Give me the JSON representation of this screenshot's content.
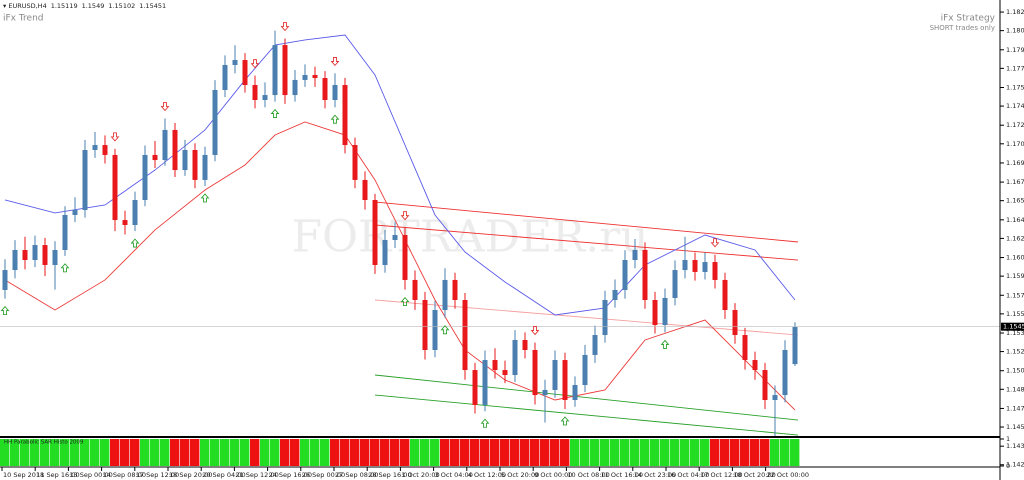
{
  "chart_data": {
    "type": "candlestick",
    "symbol": "EURUSD,H4",
    "header_values": [
      1.15119,
      1.1549,
      1.15102,
      1.15451
    ],
    "indicator_title": "iFx Trend",
    "strategy_title": "iFx Strategy",
    "strategy_note": "SHORT trades only",
    "watermark": "FORTRADER.ru",
    "up_color": "#4a7fb0",
    "down_color": "#e8191c",
    "open": [
      1.15777,
      1.15954,
      1.16132,
      1.16043,
      1.16176,
      1.15999,
      1.16132,
      1.16443,
      1.16487,
      1.1702,
      1.17064,
      1.16976,
      1.16398,
      1.16354,
      1.16576,
      1.16976,
      1.16931,
      1.17198,
      1.16842,
      1.1702,
      1.16754,
      1.16976,
      1.17553,
      1.17775,
      1.17819,
      1.17597,
      1.17464,
      1.17508,
      1.17952,
      1.17508,
      1.17642,
      1.17686,
      1.17659,
      1.17464,
      1.17597,
      1.17064,
      1.16754,
      1.16576,
      1.15999,
      1.16221,
      1.16265,
      1.15866,
      1.15688,
      1.15244,
      1.15599,
      1.15866,
      1.15688,
      1.15066,
      1.14756,
      1.15155,
      1.15066,
      1.15022,
      1.15333,
      1.15244,
      1.14844,
      1.14889,
      1.15155,
      1.148,
      1.14933,
      1.152,
      1.15377,
      1.15688,
      1.15777,
      1.16043,
      1.16132,
      1.15688,
      1.15466,
      1.15706,
      1.15954,
      1.16043,
      1.15937,
      1.16025,
      1.15866,
      1.15599,
      1.15377,
      1.15155,
      1.15066,
      1.148,
      1.14844,
      1.15119
    ],
    "high": [
      1.1605,
      1.1622,
      1.1625,
      1.1626,
      1.1624,
      1.1621,
      1.1652,
      1.166,
      1.1711,
      1.1718,
      1.1715,
      1.1703,
      1.1648,
      1.1665,
      1.1706,
      1.171,
      1.173,
      1.1726,
      1.1711,
      1.1708,
      1.1705,
      1.1764,
      1.1786,
      1.1795,
      1.1788,
      1.1768,
      1.1762,
      1.1808,
      1.1801,
      1.1773,
      1.1778,
      1.1776,
      1.1772,
      1.177,
      1.1766,
      1.1713,
      1.1683,
      1.1663,
      1.1631,
      1.1638,
      1.1633,
      1.1595,
      1.1576,
      1.1568,
      1.1597,
      1.1593,
      1.1575,
      1.1513,
      1.1524,
      1.1526,
      1.1515,
      1.1542,
      1.154,
      1.1531,
      1.1498,
      1.1524,
      1.1522,
      1.1501,
      1.1529,
      1.1546,
      1.1577,
      1.1587,
      1.1613,
      1.1623,
      1.162,
      1.1576,
      1.1579,
      1.1604,
      1.1625,
      1.1611,
      1.1611,
      1.1609,
      1.1593,
      1.1566,
      1.1544,
      1.1523,
      1.1513,
      1.1493,
      1.1533,
      1.1549
    ],
    "low": [
      1.157,
      1.1588,
      1.1596,
      1.1598,
      1.159,
      1.1578,
      1.1608,
      1.1638,
      1.1642,
      1.1695,
      1.169,
      1.163,
      1.1627,
      1.163,
      1.1652,
      1.1686,
      1.1688,
      1.1678,
      1.1679,
      1.1668,
      1.167,
      1.1692,
      1.1749,
      1.177,
      1.1753,
      1.1739,
      1.174,
      1.1745,
      1.1743,
      1.1745,
      1.1758,
      1.1758,
      1.1739,
      1.174,
      1.1699,
      1.1668,
      1.1649,
      1.1592,
      1.1593,
      1.1615,
      1.1578,
      1.156,
      1.1516,
      1.1518,
      1.1553,
      1.1561,
      1.1498,
      1.1468,
      1.147,
      1.1499,
      1.1495,
      1.1496,
      1.1517,
      1.1476,
      1.146,
      1.1482,
      1.1472,
      1.1474,
      1.1487,
      1.1513,
      1.1531,
      1.1562,
      1.157,
      1.1597,
      1.1561,
      1.1539,
      1.154,
      1.1564,
      1.1588,
      1.1586,
      1.1587,
      1.1579,
      1.1552,
      1.153,
      1.1507,
      1.1498,
      1.1472,
      1.1443,
      1.1478,
      1.15102
    ],
    "close": [
      1.15954,
      1.16132,
      1.16043,
      1.16176,
      1.15999,
      1.16132,
      1.16443,
      1.16487,
      1.1702,
      1.17064,
      1.16976,
      1.16398,
      1.16354,
      1.16576,
      1.16976,
      1.16931,
      1.17198,
      1.16842,
      1.1702,
      1.16754,
      1.16976,
      1.17553,
      1.17775,
      1.17819,
      1.17597,
      1.17464,
      1.17508,
      1.17952,
      1.17508,
      1.17642,
      1.17686,
      1.17659,
      1.17464,
      1.17597,
      1.17064,
      1.16754,
      1.16576,
      1.15999,
      1.16221,
      1.16265,
      1.15866,
      1.15688,
      1.15244,
      1.15599,
      1.15866,
      1.15688,
      1.15066,
      1.14756,
      1.15155,
      1.15066,
      1.15022,
      1.15333,
      1.15244,
      1.14844,
      1.14889,
      1.15155,
      1.148,
      1.14933,
      1.152,
      1.15377,
      1.15688,
      1.15777,
      1.16043,
      1.16132,
      1.15688,
      1.15466,
      1.15706,
      1.15954,
      1.16043,
      1.15937,
      1.16025,
      1.15866,
      1.15599,
      1.15377,
      1.15155,
      1.15066,
      1.148,
      1.14844,
      1.15244,
      1.15451
    ],
    "ylim": [
      1.14205,
      1.18352
    ],
    "yticks": [
      1.18245,
      {
        "value": 1.1808,
        "label": "1.18080"
      },
      {
        "value": 1.1791,
        "label": "1.17910"
      },
      1.17745,
      1.17575,
      {
        "value": 1.1741,
        "label": "1.17410"
      },
      {
        "value": 1.1724,
        "label": "1.17240"
      },
      1.17075,
      1.16905,
      1.16735,
      {
        "value": 1.1657,
        "label": "1.16570"
      },
      {
        "value": 1.164,
        "label": "1.16400"
      },
      1.16235,
      1.16065,
      {
        "value": 1.159,
        "label": "1.15900"
      },
      {
        "value": 1.1573,
        "label": "1.15730"
      },
      1.15565,
      1.15395,
      {
        "value": 1.1523,
        "label": "1.15230"
      },
      {
        "value": 1.1506,
        "label": "1.15060"
      },
      1.14895,
      1.14725,
      {
        "value": 1.1456,
        "label": "1.14560"
      },
      {
        "value": 1.1439,
        "label": "1.14390"
      },
      1.14225
    ],
    "time_labels": [
      "10 Sep 2018",
      "11 Sep 16:00",
      "13 Sep 00:00",
      "14 Sep 08:00",
      "17 Sep 12:00",
      "18 Sep 20:00",
      "20 Sep 04:00",
      "21 Sep 12:00",
      "24 Sep 16:00",
      "26 Sep 00:00",
      "27 Sep 08:00",
      "28 Sep 16:00",
      "1 Oct 20:00",
      "3 Oct 04:00",
      "4 Oct 12:00",
      "5 Oct 20:00",
      "9 Oct 00:00",
      "10 Oct 08:00",
      "11 Oct 16:00",
      "14 Oct 23:00",
      "16 Oct 04:00",
      "17 Oct 12:00",
      "18 Oct 20:00",
      "22 Oct 00:00"
    ],
    "lines": [
      {
        "color": "#5b5bea",
        "x": [
          0,
          5,
          10,
          15,
          20,
          24,
          27,
          30,
          34,
          37,
          40,
          43,
          46,
          50,
          55,
          60,
          64,
          70,
          75,
          79
        ],
        "values": [
          1.16576,
          1.16461,
          1.16532,
          1.16842,
          1.17198,
          1.17642,
          1.17952,
          1.17997,
          1.18041,
          1.17686,
          1.17064,
          1.16443,
          1.16114,
          1.15848,
          1.15555,
          1.15617,
          1.15999,
          1.16265,
          1.16132,
          1.15688
        ]
      },
      {
        "color": "#ec3a3a",
        "x": [
          0,
          5,
          10,
          15,
          20,
          24,
          27,
          30,
          34,
          37,
          40,
          43,
          46,
          50,
          55,
          60,
          64,
          70,
          75,
          79
        ],
        "values": [
          1.15866,
          1.15599,
          1.15866,
          1.1631,
          1.16665,
          1.16887,
          1.17153,
          1.17269,
          1.17153,
          1.16754,
          1.16221,
          1.15688,
          1.15244,
          1.14978,
          1.148,
          1.14889,
          1.15333,
          1.1551,
          1.15066,
          1.14711
        ]
      }
    ],
    "channels": [
      {
        "color": "#ee3030",
        "x": [
          37,
          79
        ],
        "values": [
          1.16558,
          1.16203
        ]
      },
      {
        "color": "#ee3030",
        "x": [
          37,
          79
        ],
        "values": [
          1.16354,
          1.16043
        ]
      },
      {
        "color": "#f4a0a0",
        "x": [
          37,
          79
        ],
        "values": [
          1.15688,
          1.15377
        ]
      },
      {
        "color": "#2aa02a",
        "x": [
          37,
          79
        ],
        "values": [
          1.15022,
          1.14622
        ]
      },
      {
        "color": "#2aa02a",
        "x": [
          37,
          79
        ],
        "values": [
          1.14844,
          1.14489
        ]
      }
    ],
    "buy_signals": [
      0,
      6,
      13,
      20,
      27,
      33,
      40,
      44,
      48,
      56,
      66,
      77
    ],
    "sell_signals": [
      11,
      16,
      25,
      28,
      33,
      40,
      53,
      71
    ],
    "histogram": {
      "title": "HH Parabolic SAR Histo 2009",
      "ylim": [
        0,
        1
      ],
      "yticks": [
        0,
        1
      ],
      "values": [
        1,
        1,
        1,
        1,
        1,
        1,
        1,
        1,
        1,
        1,
        1,
        1,
        1,
        1,
        1,
        1,
        1,
        1,
        1,
        1,
        1,
        1,
        1,
        1,
        1,
        1,
        1,
        1,
        1,
        1,
        1,
        1,
        1,
        1,
        1,
        1,
        1,
        1,
        1,
        1,
        1,
        1,
        1,
        1,
        1,
        1,
        1,
        1,
        1,
        1,
        1,
        1,
        1,
        1,
        1,
        1,
        1,
        1,
        1,
        1,
        1,
        1,
        1,
        1,
        1,
        1,
        1,
        1,
        1,
        1,
        1,
        1,
        1,
        1,
        1,
        1,
        1,
        1,
        1,
        1
      ],
      "colors": [
        "#22dd22",
        "#22dd22",
        "#22dd22",
        "#22dd22",
        "#22dd22",
        "#22dd22",
        "#22dd22",
        "#22dd22",
        "#22dd22",
        "#22dd22",
        "#22dd22",
        "#ee1111",
        "#ee1111",
        "#ee1111",
        "#22dd22",
        "#22dd22",
        "#22dd22",
        "#ee1111",
        "#ee1111",
        "#ee1111",
        "#22dd22",
        "#22dd22",
        "#22dd22",
        "#22dd22",
        "#22dd22",
        "#ee1111",
        "#22dd22",
        "#22dd22",
        "#ee1111",
        "#ee1111",
        "#22dd22",
        "#22dd22",
        "#22dd22",
        "#ee1111",
        "#ee1111",
        "#ee1111",
        "#ee1111",
        "#ee1111",
        "#ee1111",
        "#ee1111",
        "#ee1111",
        "#22dd22",
        "#22dd22",
        "#22dd22",
        "#ee1111",
        "#ee1111",
        "#ee1111",
        "#ee1111",
        "#ee1111",
        "#ee1111",
        "#ee1111",
        "#ee1111",
        "#ee1111",
        "#ee1111",
        "#ee1111",
        "#ee1111",
        "#ee1111",
        "#22dd22",
        "#22dd22",
        "#22dd22",
        "#22dd22",
        "#22dd22",
        "#22dd22",
        "#22dd22",
        "#22dd22",
        "#22dd22",
        "#22dd22",
        "#22dd22",
        "#22dd22",
        "#22dd22",
        "#22dd22",
        "#ee1111",
        "#ee1111",
        "#ee1111",
        "#ee1111",
        "#ee1111",
        "#ee1111",
        "#22dd22",
        "#22dd22",
        "#22dd22"
      ]
    }
  }
}
